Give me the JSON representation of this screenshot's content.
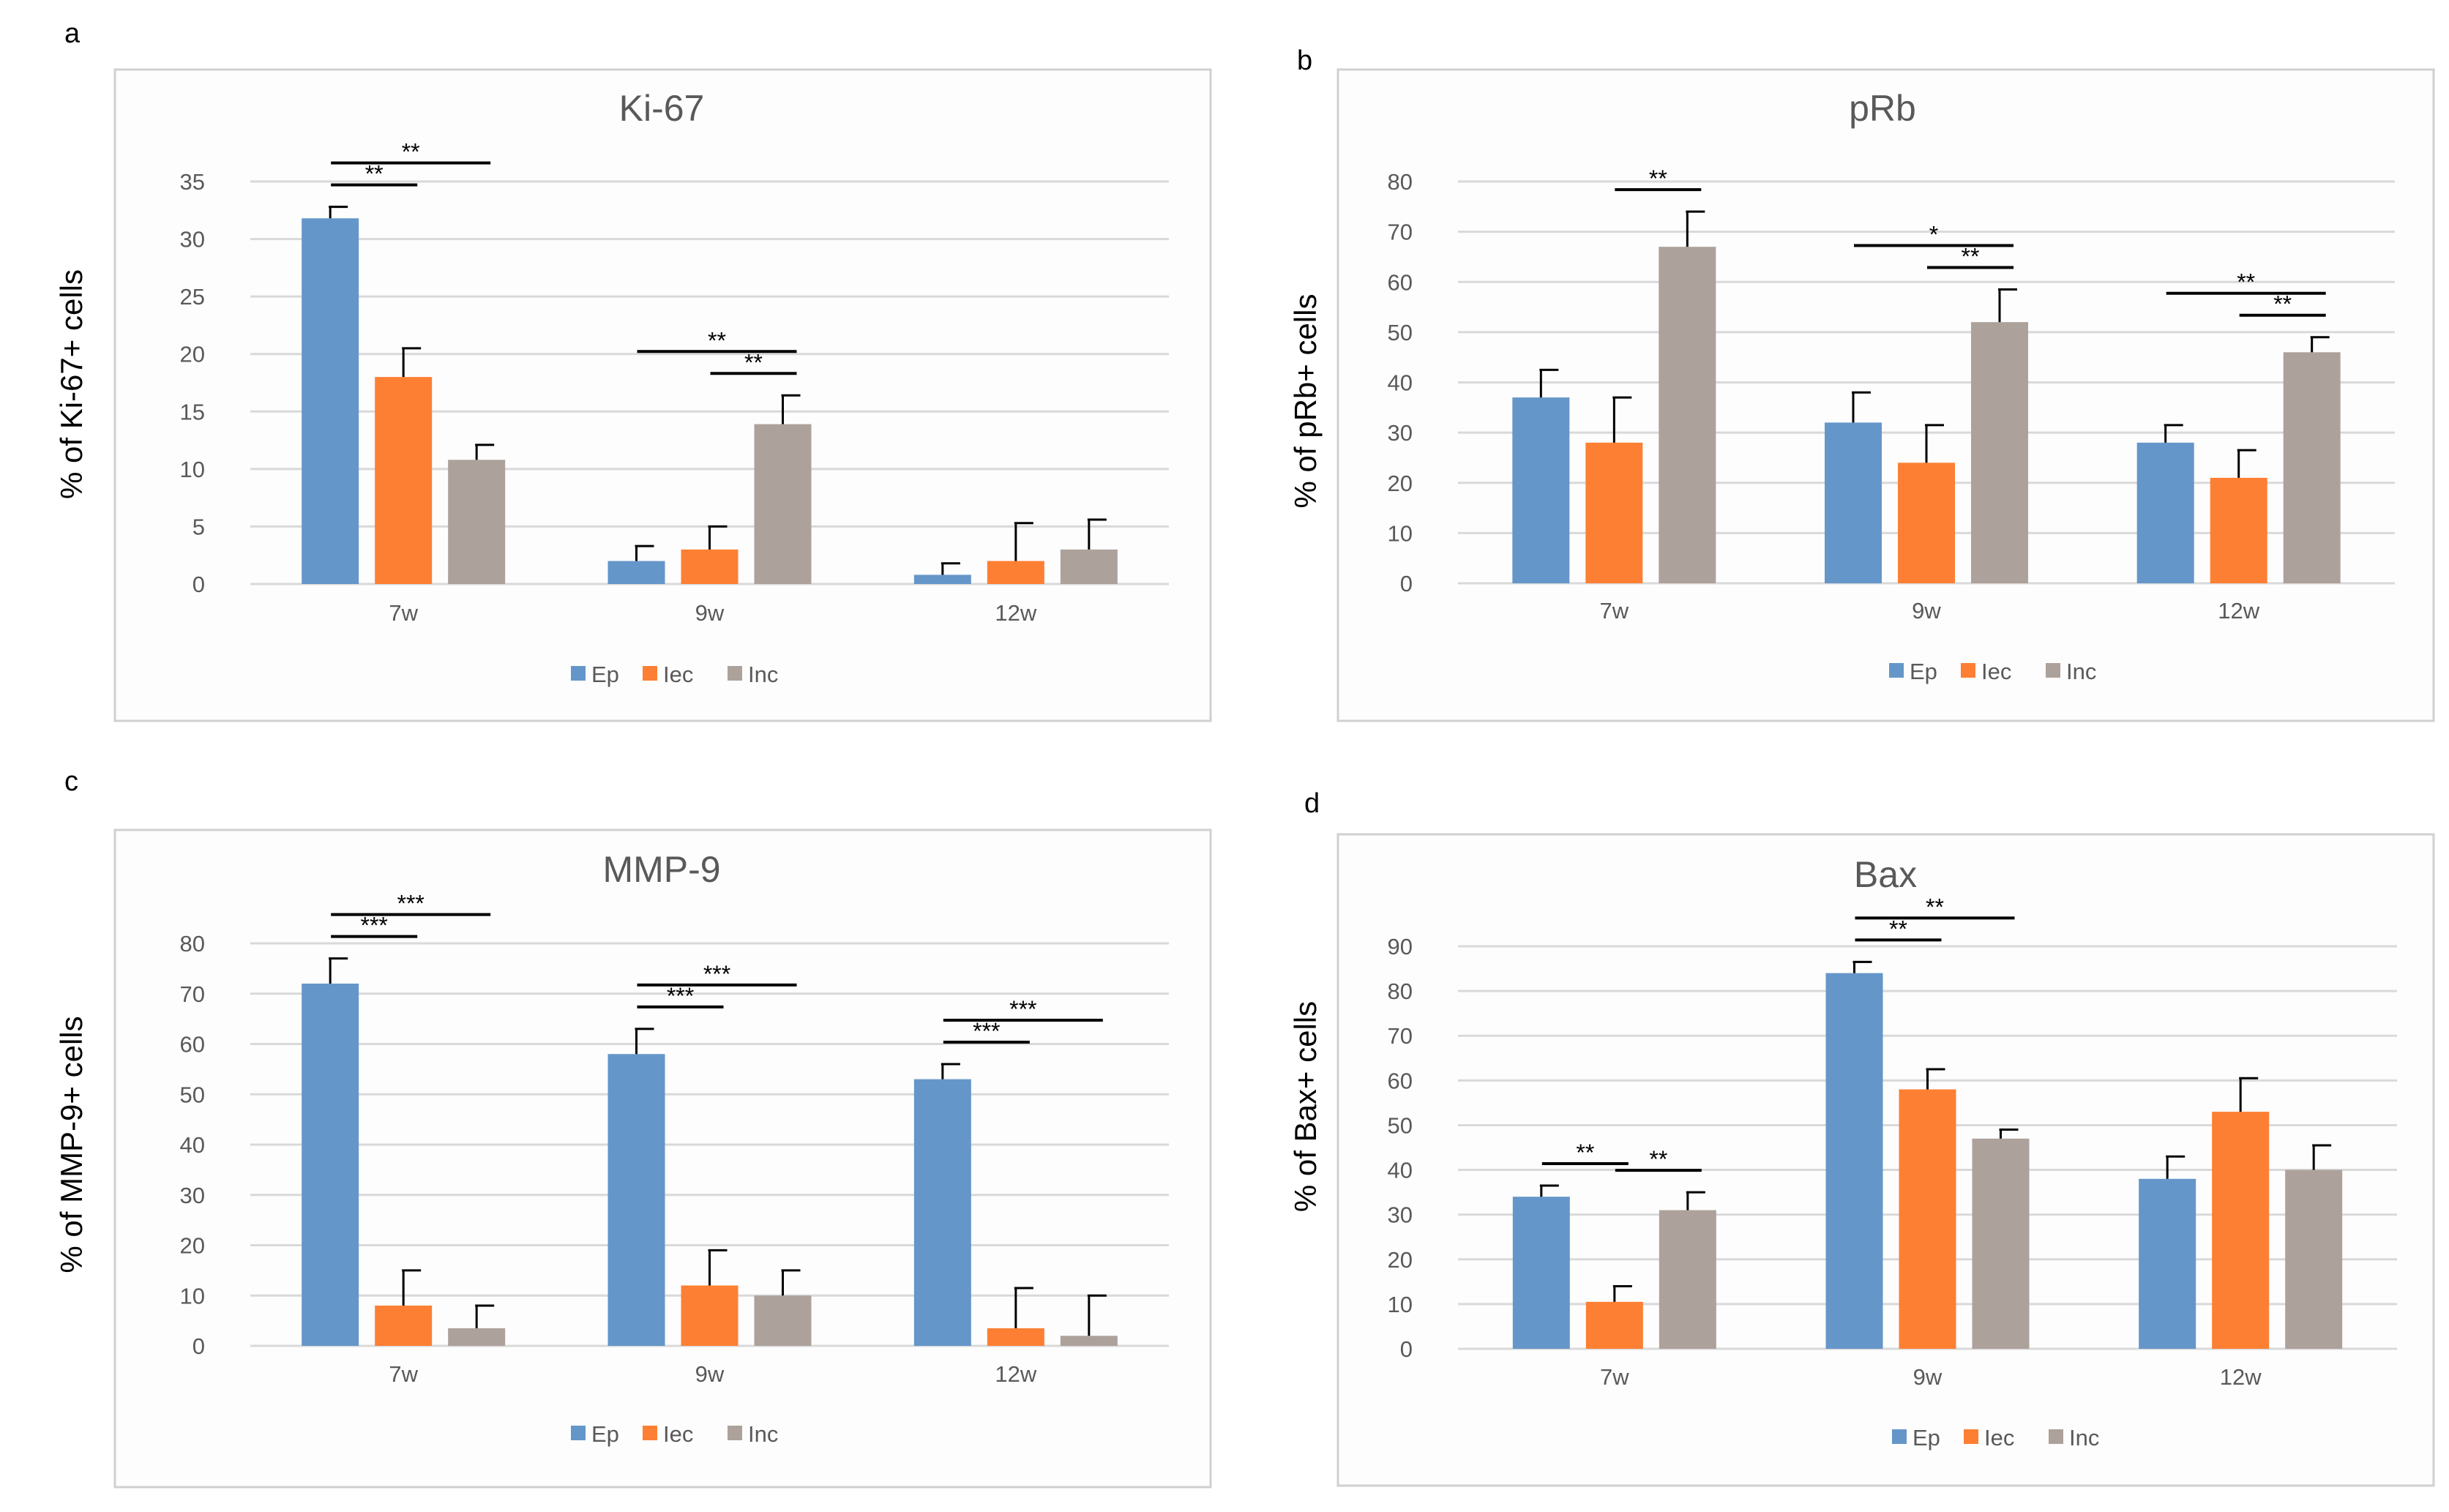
{
  "colors": {
    "Ep": "#6596c9",
    "Iec": "#fd7f33",
    "Inc": "#ada19b",
    "grid": "#d9d9d9",
    "frame": "#d0d0d0",
    "text": "#595959",
    "sig": "#000000"
  },
  "chart_data": [
    {
      "panel": "a",
      "type": "bar",
      "title": "Ki-67",
      "ylabel": "% of Ki-67+ cells",
      "xlabel": "",
      "ylim": [
        0,
        35
      ],
      "yticks": [
        0,
        5,
        10,
        15,
        20,
        25,
        30,
        35
      ],
      "categories": [
        "7w",
        "9w",
        "12w"
      ],
      "series": [
        {
          "name": "Ep",
          "values": [
            31.8,
            2.0,
            0.8
          ],
          "errors": [
            1.0,
            1.3,
            1.0
          ]
        },
        {
          "name": "Iec",
          "values": [
            18.0,
            3.0,
            2.0
          ],
          "errors": [
            2.5,
            2.0,
            3.3
          ]
        },
        {
          "name": "Inc",
          "values": [
            10.8,
            13.9,
            3.0
          ],
          "errors": [
            1.3,
            2.5,
            2.6
          ]
        }
      ],
      "significance": [
        {
          "category": 0,
          "from": 0,
          "to": 1,
          "label": "**"
        },
        {
          "category": 0,
          "from": 0,
          "to": 2,
          "label": "**"
        },
        {
          "category": 1,
          "from": 1,
          "to": 2,
          "label": "**"
        },
        {
          "category": 1,
          "from": 0,
          "to": 2,
          "label": "**"
        }
      ],
      "legend": "bottom"
    },
    {
      "panel": "b",
      "type": "bar",
      "title": "pRb",
      "ylabel": "% of pRb+ cells",
      "xlabel": "",
      "ylim": [
        0,
        80
      ],
      "yticks": [
        0,
        10,
        20,
        30,
        40,
        50,
        60,
        70,
        80
      ],
      "categories": [
        "7w",
        "9w",
        "12w"
      ],
      "series": [
        {
          "name": "Ep",
          "values": [
            37,
            32,
            28
          ],
          "errors": [
            5.5,
            6,
            3.5
          ]
        },
        {
          "name": "Iec",
          "values": [
            28,
            24,
            21
          ],
          "errors": [
            9,
            7.5,
            5.5
          ]
        },
        {
          "name": "Inc",
          "values": [
            67,
            52,
            46
          ],
          "errors": [
            7,
            6.5,
            3
          ]
        }
      ],
      "significance": [
        {
          "category": 0,
          "from": 1,
          "to": 2,
          "label": "**"
        },
        {
          "category": 1,
          "from": 0,
          "to": 2,
          "label": "*"
        },
        {
          "category": 1,
          "from": 1,
          "to": 2,
          "label": "**"
        },
        {
          "category": 2,
          "from": 0,
          "to": 2,
          "label": "**"
        },
        {
          "category": 2,
          "from": 1,
          "to": 2,
          "label": "**"
        }
      ],
      "legend": "bottom"
    },
    {
      "panel": "c",
      "type": "bar",
      "title": "MMP-9",
      "ylabel": "% of MMP-9+ cells",
      "xlabel": "",
      "ylim": [
        0,
        80
      ],
      "yticks": [
        0,
        10,
        20,
        30,
        40,
        50,
        60,
        70,
        80
      ],
      "categories": [
        "7w",
        "9w",
        "12w"
      ],
      "series": [
        {
          "name": "Ep",
          "values": [
            72,
            58,
            53
          ],
          "errors": [
            5,
            5,
            3
          ]
        },
        {
          "name": "Iec",
          "values": [
            8,
            12,
            3.5
          ],
          "errors": [
            7,
            7,
            8
          ]
        },
        {
          "name": "Inc",
          "values": [
            3.5,
            10,
            2
          ],
          "errors": [
            4.5,
            5,
            8
          ]
        }
      ],
      "significance": [
        {
          "category": 0,
          "from": 0,
          "to": 1,
          "label": "***"
        },
        {
          "category": 0,
          "from": 0,
          "to": 2,
          "label": "***"
        },
        {
          "category": 1,
          "from": 0,
          "to": 1,
          "label": "***"
        },
        {
          "category": 1,
          "from": 0,
          "to": 2,
          "label": "***"
        },
        {
          "category": 2,
          "from": 0,
          "to": 1,
          "label": "***"
        },
        {
          "category": 2,
          "from": 0,
          "to": 2,
          "label": "***"
        }
      ],
      "legend": "bottom"
    },
    {
      "panel": "d",
      "type": "bar",
      "title": "Bax",
      "ylabel": "% of Bax+ cells",
      "xlabel": "",
      "ylim": [
        0,
        90
      ],
      "yticks": [
        0,
        10,
        20,
        30,
        40,
        50,
        60,
        70,
        80,
        90
      ],
      "categories": [
        "7w",
        "9w",
        "12w"
      ],
      "series": [
        {
          "name": "Ep",
          "values": [
            34,
            84,
            38
          ],
          "errors": [
            2.5,
            2.5,
            5
          ]
        },
        {
          "name": "Iec",
          "values": [
            10.5,
            58,
            53
          ],
          "errors": [
            3.5,
            4.5,
            7.5
          ]
        },
        {
          "name": "Inc",
          "values": [
            31,
            47,
            40
          ],
          "errors": [
            4,
            2,
            5.5
          ]
        }
      ],
      "significance": [
        {
          "category": 0,
          "from": 0,
          "to": 1,
          "label": "**"
        },
        {
          "category": 0,
          "from": 1,
          "to": 2,
          "label": "**"
        },
        {
          "category": 1,
          "from": 0,
          "to": 1,
          "label": "**"
        },
        {
          "category": 1,
          "from": 0,
          "to": 2,
          "label": "**"
        }
      ],
      "legend": "bottom"
    }
  ]
}
